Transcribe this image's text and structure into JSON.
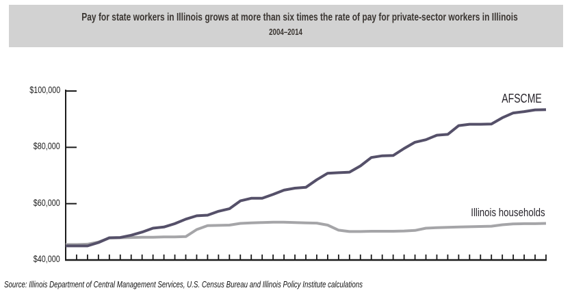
{
  "header": {
    "title": "Pay for state workers in Illinois grows at more than six times the rate of pay for private-sector workers in Illinois",
    "subtitle": "2004–2014"
  },
  "footer": {
    "source": "Source: Illinois Department of Central Management Services, U.S. Census Bureau and Illinois Policy Institute calculations"
  },
  "colors": {
    "banner_bg": "#d2d2d2",
    "title_text": "#3a3531",
    "axis": "#1a1a1a"
  },
  "chart_data": {
    "type": "line",
    "title": "Pay for state workers in Illinois grows at more than six times the rate of pay for private-sector workers in Illinois",
    "subtitle": "2004-2014",
    "xlabel": "",
    "ylabel": "",
    "x_range": [
      2004,
      2014
    ],
    "x_tick_count": 44,
    "x_tick_labels_visible": false,
    "ylim": [
      40000,
      100000
    ],
    "y_ticks": [
      40000,
      60000,
      80000,
      100000
    ],
    "y_tick_labels": [
      "$40,000",
      "$60,000",
      "$80,000",
      "$100,000"
    ],
    "grid": false,
    "legend": "inline-labels-at-line-ends",
    "series": [
      {
        "name": "AFSCME",
        "color": "#555069",
        "end_value": 93400,
        "values": [
          45000,
          45000,
          45000,
          46200,
          47900,
          48000,
          48800,
          49900,
          51300,
          51700,
          52900,
          54500,
          55700,
          55900,
          57300,
          58200,
          61000,
          61900,
          61900,
          63300,
          64800,
          65500,
          65800,
          68500,
          70800,
          71000,
          71200,
          73400,
          76400,
          77000,
          77100,
          79600,
          81800,
          82700,
          84300,
          84600,
          87700,
          88200,
          88200,
          88300,
          90500,
          92200,
          92700,
          93300,
          93400
        ]
      },
      {
        "name": "Illinois households",
        "color": "#a5a5a8",
        "end_value": 53000,
        "values": [
          45500,
          45500,
          45600,
          46400,
          47800,
          47900,
          48000,
          48100,
          48100,
          48200,
          48200,
          48300,
          50800,
          52200,
          52300,
          52400,
          53000,
          53200,
          53300,
          53400,
          53400,
          53300,
          53200,
          53100,
          52400,
          50600,
          50100,
          50100,
          50200,
          50200,
          50200,
          50300,
          50500,
          51300,
          51500,
          51600,
          51700,
          51800,
          51900,
          52000,
          52500,
          52800,
          52900,
          52900,
          53000
        ]
      }
    ]
  }
}
